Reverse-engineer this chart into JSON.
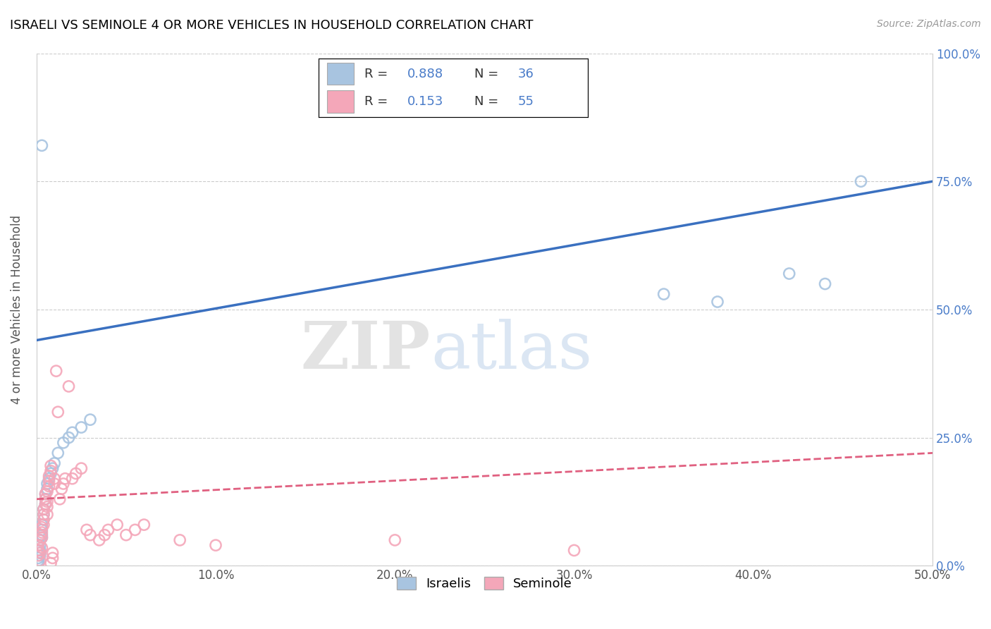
{
  "title": "ISRAELI VS SEMINOLE 4 OR MORE VEHICLES IN HOUSEHOLD CORRELATION CHART",
  "source": "Source: ZipAtlas.com",
  "ylabel": "4 or more Vehicles in Household",
  "xlim": [
    0.0,
    0.5
  ],
  "ylim": [
    0.0,
    1.0
  ],
  "xticklabels": [
    "0.0%",
    "10.0%",
    "20.0%",
    "30.0%",
    "40.0%",
    "50.0%"
  ],
  "yticklabels": [
    "0.0%",
    "25.0%",
    "50.0%",
    "75.0%",
    "100.0%"
  ],
  "xtick_vals": [
    0.0,
    0.1,
    0.2,
    0.3,
    0.4,
    0.5
  ],
  "ytick_vals": [
    0.0,
    0.25,
    0.5,
    0.75,
    1.0
  ],
  "israeli_color": "#a8c4e0",
  "seminole_color": "#f4a7b9",
  "israeli_line_color": "#3a70c0",
  "seminole_line_color": "#e06080",
  "israeli_R": 0.888,
  "israeli_N": 36,
  "seminole_R": 0.153,
  "seminole_N": 55,
  "watermark_zip": "ZIP",
  "watermark_atlas": "atlas",
  "israeli_line_x0": 0.0,
  "israeli_line_y0": 0.44,
  "israeli_line_x1": 0.5,
  "israeli_line_y1": 0.75,
  "seminole_line_x0": 0.0,
  "seminole_line_y0": 0.13,
  "seminole_line_x1": 0.5,
  "seminole_line_y1": 0.22,
  "israeli_x": [
    0.001,
    0.001,
    0.001,
    0.002,
    0.002,
    0.002,
    0.002,
    0.002,
    0.003,
    0.003,
    0.003,
    0.003,
    0.004,
    0.004,
    0.004,
    0.005,
    0.005,
    0.005,
    0.006,
    0.006,
    0.007,
    0.008,
    0.009,
    0.01,
    0.012,
    0.015,
    0.018,
    0.02,
    0.025,
    0.03,
    0.35,
    0.38,
    0.42,
    0.44,
    0.46,
    0.003
  ],
  "israeli_y": [
    0.005,
    0.01,
    0.015,
    0.02,
    0.025,
    0.03,
    0.04,
    0.05,
    0.055,
    0.06,
    0.07,
    0.08,
    0.09,
    0.1,
    0.11,
    0.12,
    0.13,
    0.14,
    0.15,
    0.16,
    0.17,
    0.18,
    0.19,
    0.2,
    0.22,
    0.24,
    0.25,
    0.26,
    0.27,
    0.285,
    0.53,
    0.515,
    0.57,
    0.55,
    0.75,
    0.82
  ],
  "seminole_x": [
    0.001,
    0.001,
    0.001,
    0.002,
    0.002,
    0.002,
    0.002,
    0.003,
    0.003,
    0.003,
    0.003,
    0.004,
    0.004,
    0.004,
    0.004,
    0.005,
    0.005,
    0.005,
    0.006,
    0.006,
    0.006,
    0.006,
    0.007,
    0.007,
    0.007,
    0.008,
    0.008,
    0.008,
    0.009,
    0.009,
    0.01,
    0.01,
    0.011,
    0.012,
    0.013,
    0.014,
    0.015,
    0.016,
    0.018,
    0.02,
    0.022,
    0.025,
    0.028,
    0.03,
    0.035,
    0.038,
    0.04,
    0.045,
    0.05,
    0.055,
    0.06,
    0.08,
    0.1,
    0.2,
    0.3
  ],
  "seminole_y": [
    0.02,
    0.03,
    0.04,
    0.01,
    0.025,
    0.05,
    0.06,
    0.035,
    0.055,
    0.065,
    0.075,
    0.08,
    0.09,
    0.1,
    0.11,
    0.12,
    0.13,
    0.14,
    0.1,
    0.115,
    0.125,
    0.145,
    0.155,
    0.165,
    0.175,
    0.185,
    0.195,
    0.005,
    0.015,
    0.025,
    0.16,
    0.17,
    0.38,
    0.3,
    0.13,
    0.15,
    0.16,
    0.17,
    0.35,
    0.17,
    0.18,
    0.19,
    0.07,
    0.06,
    0.05,
    0.06,
    0.07,
    0.08,
    0.06,
    0.07,
    0.08,
    0.05,
    0.04,
    0.05,
    0.03
  ]
}
